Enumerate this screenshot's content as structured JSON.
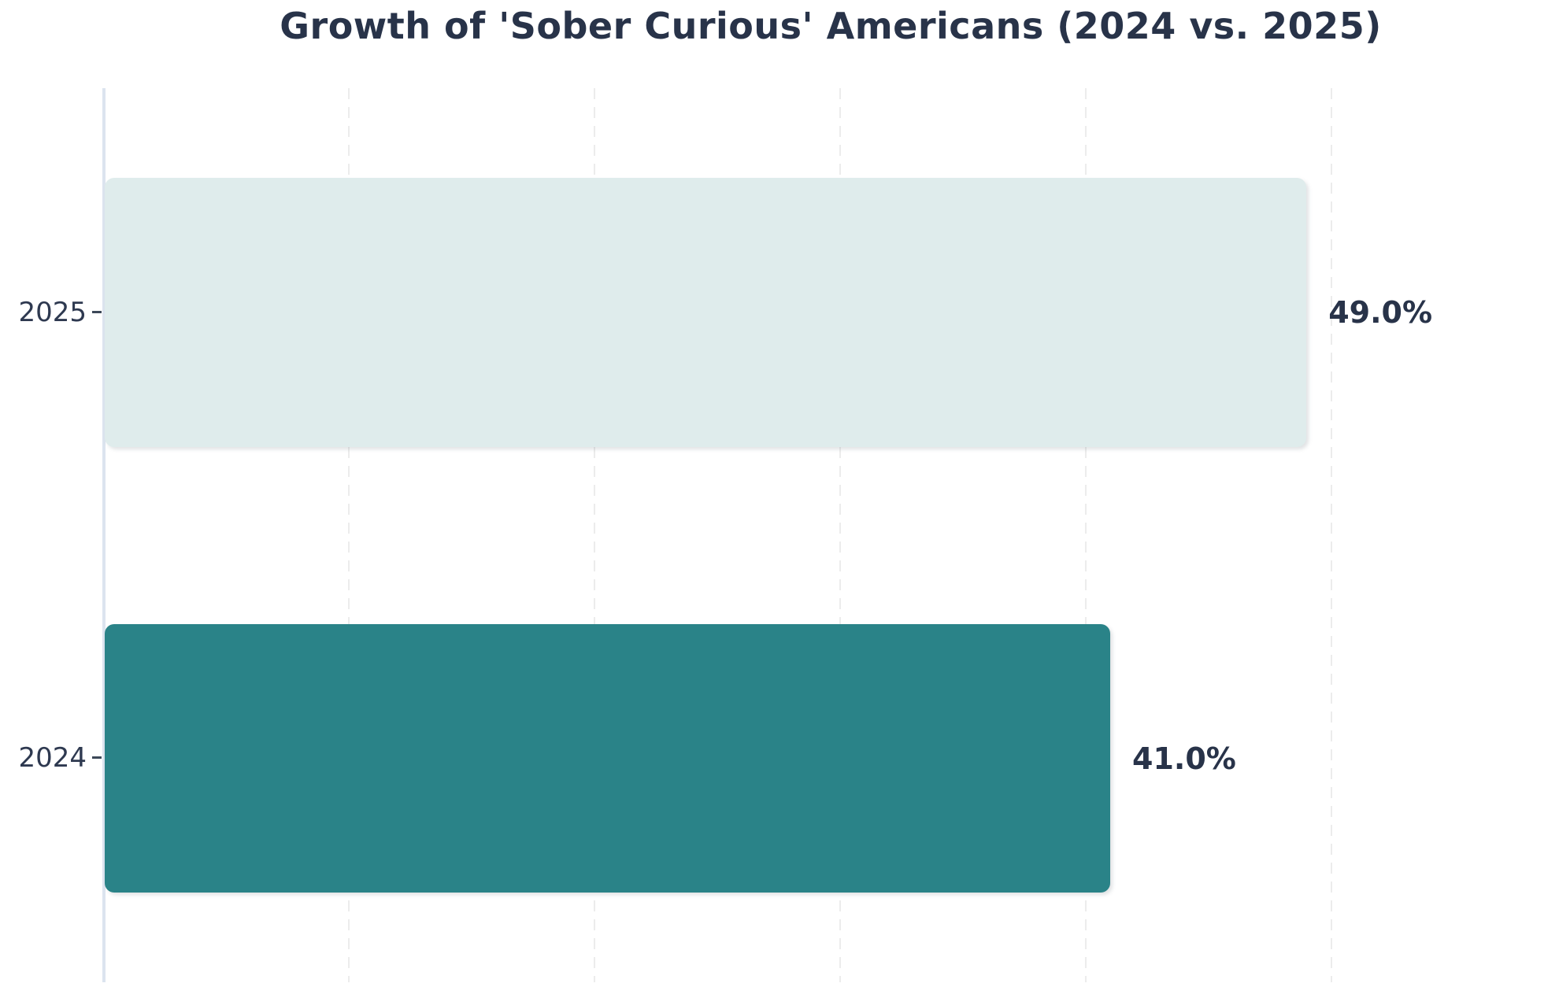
{
  "title": "Growth of 'Sober Curious' Americans (2024 vs. 2025)",
  "chart_data": {
    "type": "bar",
    "orientation": "horizontal",
    "categories": [
      "2025",
      "2024"
    ],
    "values": [
      49.0,
      41.0
    ],
    "value_labels": [
      "49.0%",
      "41.0%"
    ],
    "bar_colors": [
      "#dfecec",
      "#2a8388"
    ],
    "title": "Growth of 'Sober Curious' Americans (2024 vs. 2025)",
    "xlabel": "",
    "ylabel": "",
    "xlim": [
      0,
      59.3
    ],
    "grid_ticks": [
      10,
      20,
      30,
      40,
      50
    ],
    "grid_style": "vertical-dashed",
    "legend": "none",
    "text_color": "#283349",
    "axis_line_color": "#dce4ef",
    "gridline_color": "#ececec"
  }
}
